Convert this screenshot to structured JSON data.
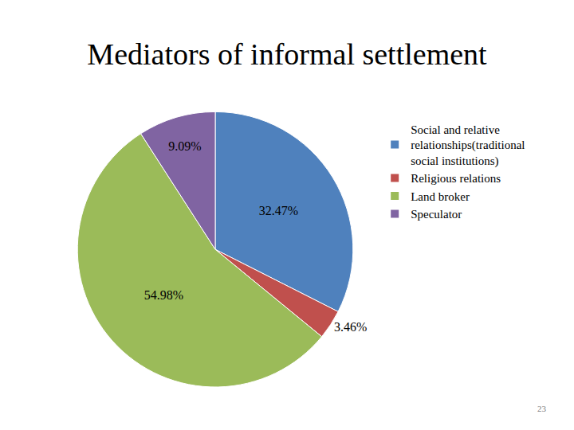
{
  "chart_data": {
    "type": "pie",
    "title": "Mediators of informal settlement",
    "categories": [
      "Social and relative relationships(traditional social institutions)",
      "Religious relations",
      "Land broker",
      "Speculator"
    ],
    "values": [
      32.47,
      3.46,
      54.98,
      9.09
    ],
    "value_labels": [
      "32.47%",
      "3.46%",
      "54.98%",
      "9.09%"
    ],
    "colors": [
      "#4f81bd",
      "#c0504d",
      "#9bbb59",
      "#8064a2"
    ],
    "data_labels": true,
    "legend": "right",
    "annotations": [
      "23"
    ]
  }
}
